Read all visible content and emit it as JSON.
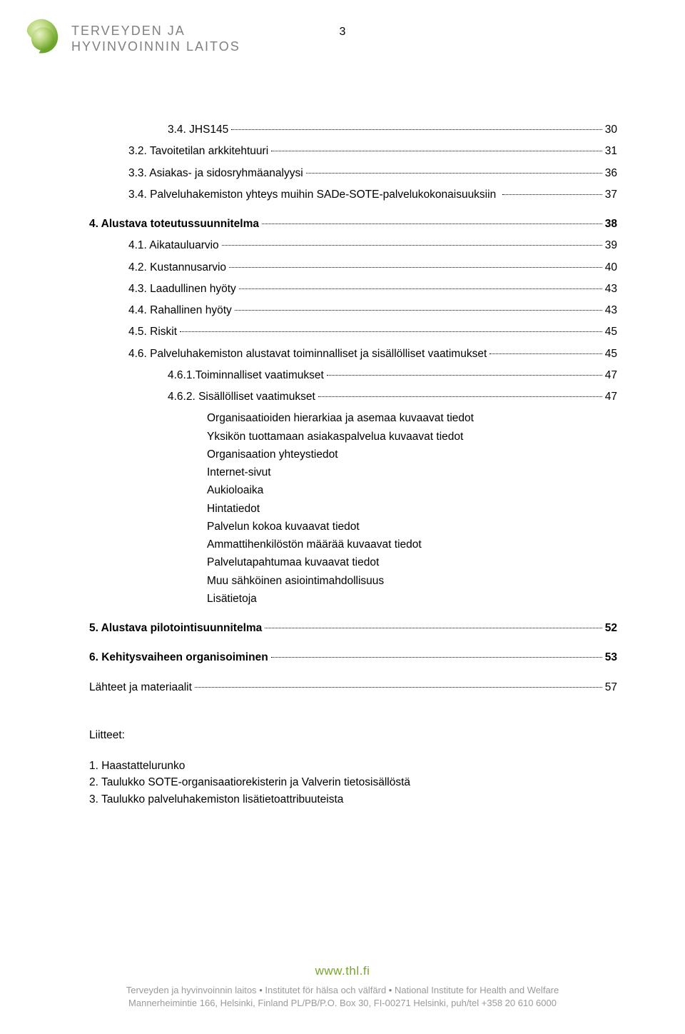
{
  "page_number": "3",
  "header": {
    "org_line1": "TERVEYDEN JA",
    "org_line2": "HYVINVOINNIN LAITOS",
    "logo_colors": {
      "outer": "#b8d67a",
      "inner": "#6aa329",
      "highlight": "#e8f2c8"
    }
  },
  "toc": [
    {
      "indent": 2,
      "label": "3.4. JHS145",
      "page": "30",
      "bold": false
    },
    {
      "indent": 1,
      "label": "3.2. Tavoitetilan arkkitehtuuri",
      "page": "31",
      "bold": false
    },
    {
      "indent": 1,
      "label": "3.3. Asiakas- ja sidosryhmäanalyysi",
      "page": "36",
      "bold": false
    },
    {
      "indent": 1,
      "label": "3.4. Palveluhakemiston yhteys muihin SADe-SOTE-palvelukokonaisuuksiin ",
      "page": "37",
      "bold": false
    },
    {
      "indent": 0,
      "label": "4. Alustava toteutussuunnitelma",
      "page": "38",
      "bold": true,
      "gap": true
    },
    {
      "indent": 1,
      "label": "4.1. Aikatauluarvio",
      "page": "39",
      "bold": false
    },
    {
      "indent": 1,
      "label": "4.2. Kustannusarvio",
      "page": "40",
      "bold": false
    },
    {
      "indent": 1,
      "label": "4.3. Laadullinen hyöty",
      "page": "43",
      "bold": false
    },
    {
      "indent": 1,
      "label": "4.4. Rahallinen hyöty",
      "page": "43",
      "bold": false
    },
    {
      "indent": 1,
      "label": "4.5. Riskit",
      "page": "45",
      "bold": false
    },
    {
      "indent": 1,
      "label": "4.6. Palveluhakemiston alustavat toiminnalliset ja sisällölliset vaatimukset",
      "page": "45",
      "bold": false
    },
    {
      "indent": 2,
      "label": "4.6.1.Toiminnalliset vaatimukset",
      "page": "47",
      "bold": false
    },
    {
      "indent": 2,
      "label": "4.6.2. Sisällölliset vaatimukset",
      "page": "47",
      "bold": false
    }
  ],
  "bullets": [
    "Organisaatioiden hierarkiaa ja asemaa kuvaavat tiedot",
    "Yksikön tuottamaan asiakaspalvelua kuvaavat tiedot",
    "Organisaation yhteystiedot",
    "Internet-sivut",
    "Aukioloaika",
    "Hintatiedot",
    "Palvelun kokoa kuvaavat tiedot",
    "Ammattihenkilöstön määrää kuvaavat tiedot",
    "Palvelutapahtumaa kuvaavat tiedot",
    "Muu sähköinen asiointimahdollisuus",
    "Lisätietoja"
  ],
  "toc_after": [
    {
      "indent": 0,
      "label": "5. Alustava pilotointisuunnitelma",
      "page": "52",
      "bold": true,
      "gap": true
    },
    {
      "indent": 0,
      "label": "6. Kehitysvaiheen organisoiminen",
      "page": "53",
      "bold": true,
      "gap": true
    },
    {
      "indent": 0,
      "label": "Lähteet ja materiaalit",
      "page": "57",
      "bold": false,
      "gap": true
    }
  ],
  "liitteet": {
    "title": "Liitteet:",
    "items": [
      "1. Haastattelurunko",
      "2. Taulukko SOTE-organisaatiorekisterin ja Valverin tietosisällöstä",
      "3. Taulukko palveluhakemiston lisätietoattribuuteista"
    ]
  },
  "footer": {
    "url": "www.thl.fi",
    "line1_a": "Terveyden ja hyvinvoinnin laitos",
    "line1_b": "Institutet för hälsa och välfärd",
    "line1_c": "National Institute for Health and Welfare",
    "line2": "Mannerheimintie 166, Helsinki, Finland PL/PB/P.O. Box 30, FI-00271 Helsinki, puh/tel +358 20 610 6000"
  }
}
